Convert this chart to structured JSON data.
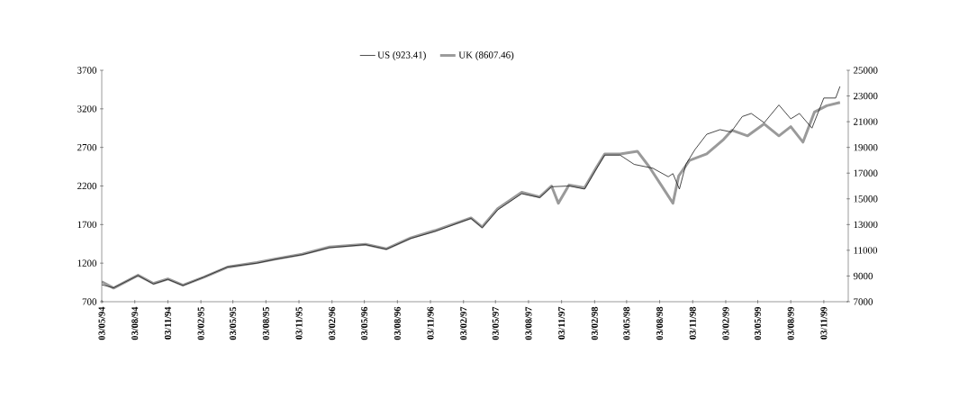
{
  "chart_data": {
    "type": "line",
    "legend": "top",
    "marker": "none",
    "line_style": "solid",
    "grid": false,
    "xlim": [
      "1994-05-03",
      "2000-01-10"
    ],
    "xticks": [
      {
        "value": "1994-05-03",
        "label": "03/05/94"
      },
      {
        "value": "1994-08-03",
        "label": "03/08/94"
      },
      {
        "value": "1994-11-03",
        "label": "03/11/94"
      },
      {
        "value": "1995-02-03",
        "label": "03/02/95"
      },
      {
        "value": "1995-05-03",
        "label": "03/05/95"
      },
      {
        "value": "1995-08-03",
        "label": "03/08/95"
      },
      {
        "value": "1995-11-03",
        "label": "03/11/95"
      },
      {
        "value": "1996-02-03",
        "label": "03/02/96"
      },
      {
        "value": "1996-05-03",
        "label": "03/05/96"
      },
      {
        "value": "1996-08-03",
        "label": "03/08/96"
      },
      {
        "value": "1996-11-03",
        "label": "03/11/96"
      },
      {
        "value": "1997-02-03",
        "label": "03/02/97"
      },
      {
        "value": "1997-05-03",
        "label": "03/05/97"
      },
      {
        "value": "1997-08-03",
        "label": "03/08/97"
      },
      {
        "value": "1997-11-03",
        "label": "03/11/97"
      },
      {
        "value": "1998-02-03",
        "label": "03/02/98"
      },
      {
        "value": "1998-05-03",
        "label": "03/05/98"
      },
      {
        "value": "1998-08-03",
        "label": "03/08/98"
      },
      {
        "value": "1998-11-03",
        "label": "03/11/98"
      },
      {
        "value": "1999-02-03",
        "label": "03/02/99"
      },
      {
        "value": "1999-05-03",
        "label": "03/05/99"
      },
      {
        "value": "1999-08-03",
        "label": "03/08/99"
      },
      {
        "value": "1999-11-03",
        "label": "03/11/99"
      }
    ],
    "ylim": [
      700,
      3700
    ],
    "yticks": [
      700,
      1200,
      1700,
      2200,
      2700,
      3200,
      3700
    ],
    "y2lim": [
      7000,
      25000
    ],
    "y2ticks": [
      7000,
      9000,
      11000,
      13000,
      15000,
      17000,
      19000,
      21000,
      23000,
      25000
    ],
    "series": [
      {
        "name": "UK (8607.46)",
        "color": "#9a9a9a",
        "axis": "y2",
        "x": [
          "1994-05-03",
          "1994-06-05",
          "1994-08-12",
          "1994-09-24",
          "1994-11-03",
          "1994-12-15",
          "1995-02-12",
          "1995-04-18",
          "1995-07-09",
          "1995-08-30",
          "1995-11-12",
          "1996-01-27",
          "1996-05-06",
          "1996-07-03",
          "1996-09-09",
          "1996-11-15",
          "1997-02-24",
          "1997-03-27",
          "1997-05-09",
          "1997-07-15",
          "1997-09-03",
          "1997-10-06",
          "1997-10-25",
          "1997-11-24",
          "1998-01-06",
          "1998-02-09",
          "1998-03-03",
          "1998-04-15",
          "1998-06-02",
          "1998-07-05",
          "1998-08-07",
          "1998-09-09",
          "1998-09-25",
          "1998-10-25",
          "1998-12-12",
          "1999-01-28",
          "1999-02-20",
          "1999-04-05",
          "1999-05-21",
          "1999-07-01",
          "1999-08-03",
          "1999-09-06",
          "1999-10-08",
          "1999-11-11",
          "1999-12-18"
        ],
        "values": [
          8560,
          8060,
          9060,
          8420,
          8770,
          8280,
          8910,
          9690,
          10050,
          10330,
          10690,
          11250,
          11470,
          11110,
          11960,
          12530,
          13520,
          12810,
          14230,
          15510,
          15150,
          16000,
          14660,
          16080,
          15860,
          17490,
          18490,
          18490,
          18700,
          17490,
          16080,
          14660,
          16780,
          17990,
          18490,
          19620,
          20330,
          19900,
          20830,
          19900,
          20610,
          19410,
          21750,
          22240,
          22500
        ]
      },
      {
        "name": "US (923.41)",
        "color": "#1a1a1a",
        "axis": "y",
        "x": [
          "1994-05-03",
          "1994-06-05",
          "1994-08-12",
          "1994-09-24",
          "1994-11-03",
          "1994-12-15",
          "1995-02-12",
          "1995-04-18",
          "1995-07-09",
          "1995-08-30",
          "1995-11-12",
          "1996-01-27",
          "1996-05-06",
          "1996-07-03",
          "1996-09-09",
          "1996-11-15",
          "1997-02-24",
          "1997-03-27",
          "1997-05-09",
          "1997-07-15",
          "1997-09-03",
          "1997-10-06",
          "1997-11-24",
          "1998-01-06",
          "1998-02-09",
          "1998-03-03",
          "1998-04-15",
          "1998-05-24",
          "1998-07-15",
          "1998-08-27",
          "1998-09-09",
          "1998-09-27",
          "1998-10-15",
          "1998-11-09",
          "1998-12-12",
          "1999-01-18",
          "1999-02-18",
          "1999-03-21",
          "1999-04-15",
          "1999-05-21",
          "1999-07-01",
          "1999-08-03",
          "1999-08-27",
          "1999-10-01",
          "1999-11-03",
          "1999-12-06",
          "1999-12-18"
        ],
        "values": [
          920,
          880,
          1040,
          930,
          990,
          910,
          1020,
          1150,
          1200,
          1250,
          1310,
          1400,
          1440,
          1380,
          1520,
          1610,
          1780,
          1660,
          1890,
          2100,
          2050,
          2190,
          2200,
          2160,
          2430,
          2600,
          2600,
          2480,
          2430,
          2320,
          2360,
          2160,
          2480,
          2670,
          2870,
          2930,
          2900,
          3100,
          3140,
          3020,
          3250,
          3070,
          3140,
          2950,
          3340,
          3340,
          3490
        ]
      }
    ]
  }
}
